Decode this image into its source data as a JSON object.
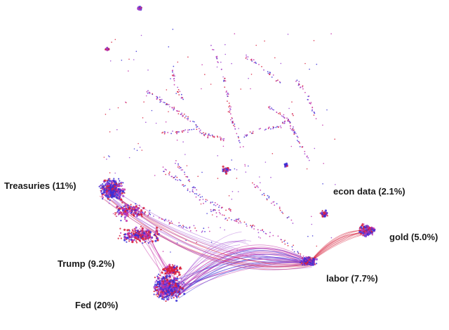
{
  "labels": {
    "treasuries": "Treasuries (11%)",
    "trump": "Trump (9.2%)",
    "fed": "Fed (20%)",
    "econ_data": "econ data (2.1%)",
    "gold": "gold (5.0%)",
    "labor": "labor (7.7%)"
  },
  "colors": {
    "blue": "#3a2fd6",
    "red": "#d8203c",
    "purple": "#9a3fd0",
    "magenta": "#c62fa8",
    "edge": "#7a3fbf"
  }
}
